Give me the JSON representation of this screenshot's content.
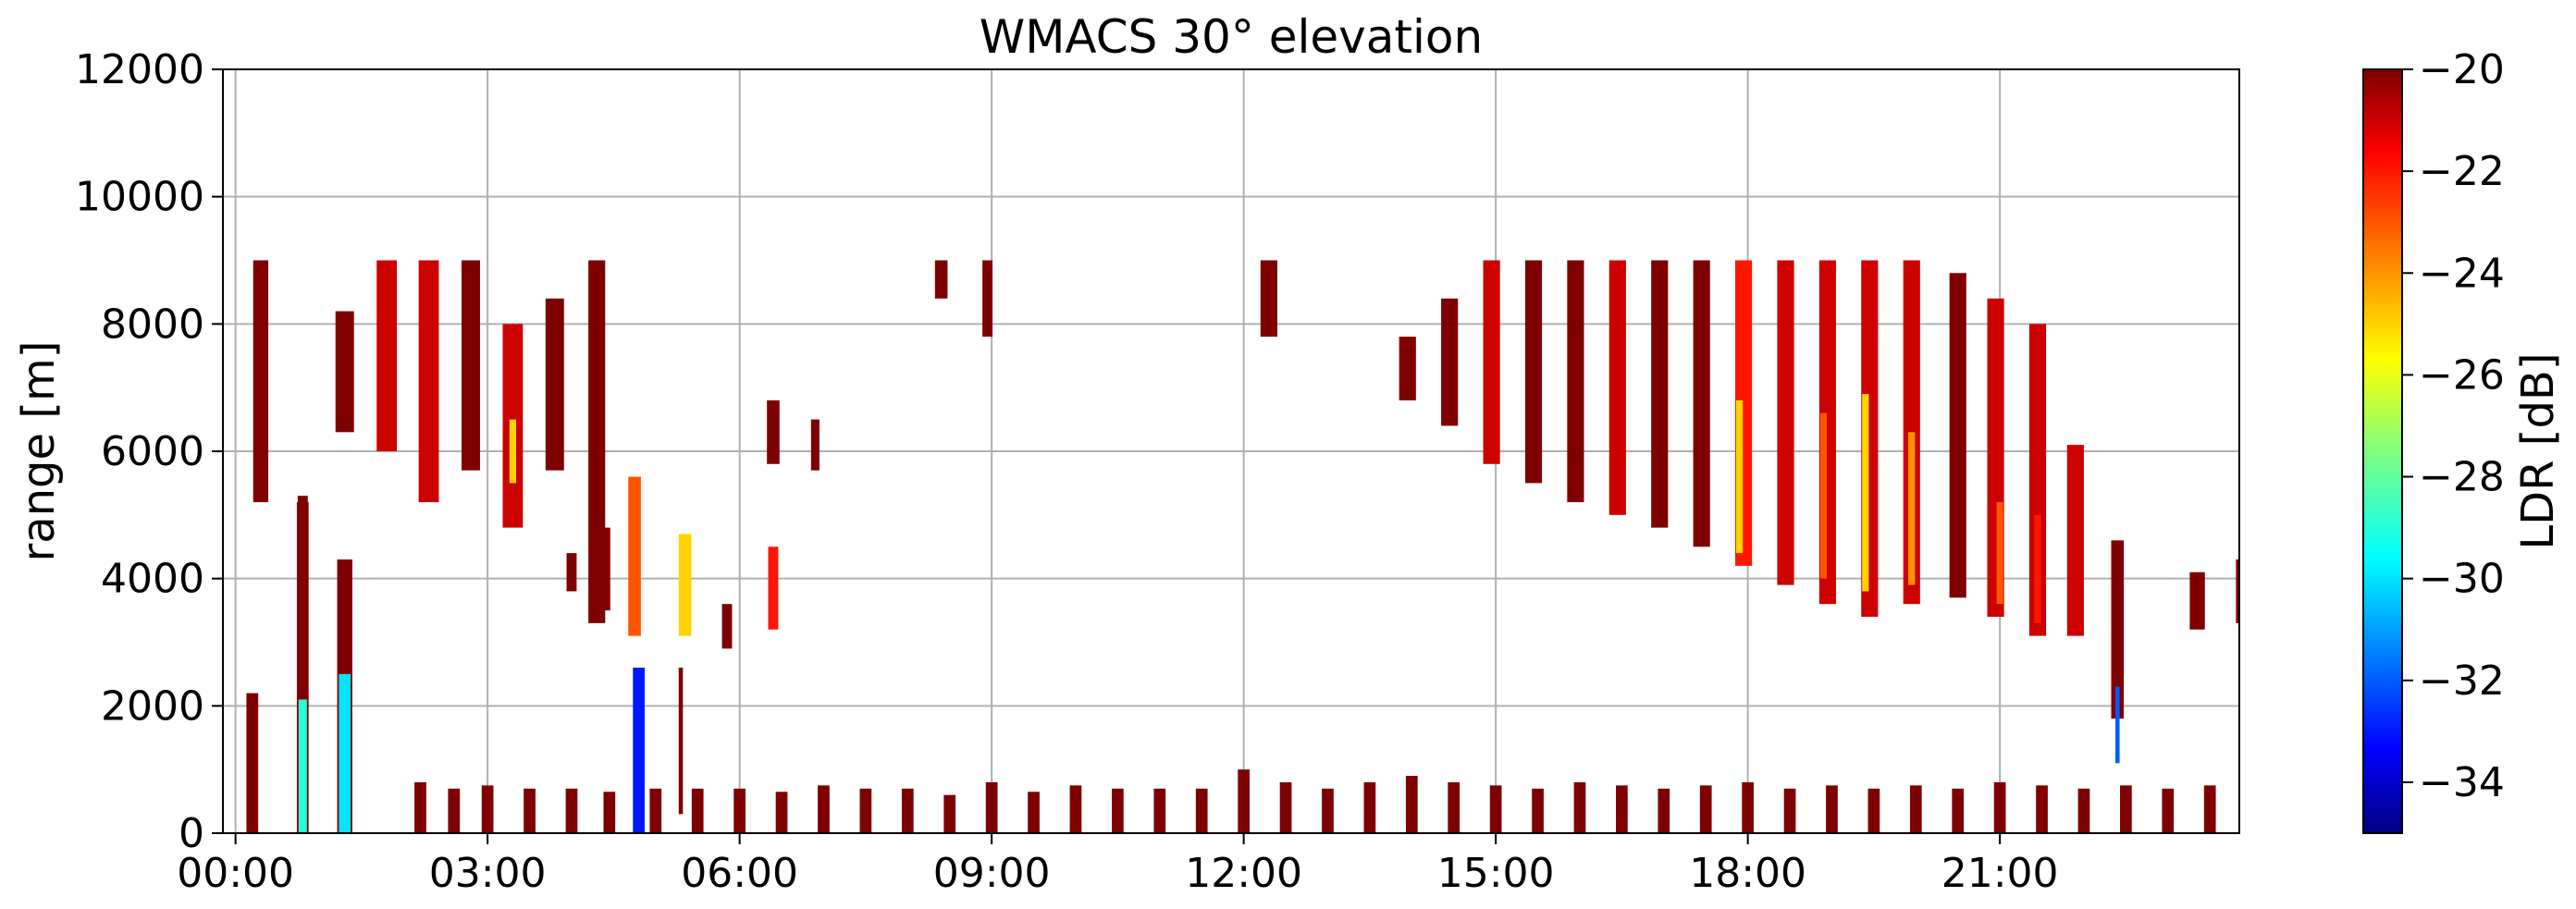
{
  "chart_data": {
    "type": "heatmap",
    "title": "WMACS 30° elevation",
    "xlabel": "",
    "ylabel": "range [m]",
    "x_unit": "hours",
    "xlim": [
      -0.15,
      23.85
    ],
    "ylim": [
      0,
      12000
    ],
    "x_ticks": [
      0,
      3,
      6,
      9,
      12,
      15,
      18,
      21
    ],
    "x_tick_labels": [
      "00:00",
      "03:00",
      "06:00",
      "09:00",
      "12:00",
      "15:00",
      "18:00",
      "21:00"
    ],
    "y_ticks": [
      0,
      2000,
      4000,
      6000,
      8000,
      10000,
      12000
    ],
    "y_tick_labels": [
      "0",
      "2000",
      "4000",
      "6000",
      "8000",
      "10000",
      "12000"
    ],
    "grid": true,
    "colorbar": {
      "label": "LDR [dB]",
      "range": [
        -35,
        -20
      ],
      "ticks": [
        -20,
        -22,
        -24,
        -26,
        -28,
        -30,
        -32,
        -34
      ],
      "tick_labels": [
        "−20",
        "−22",
        "−24",
        "−26",
        "−28",
        "−30",
        "−32",
        "−34"
      ],
      "colormap": "jet"
    },
    "upper_columns": [
      {
        "t": 0.3,
        "w": 0.18,
        "y0": 5200,
        "y1": 9000,
        "ldr": -20
      },
      {
        "t": 1.3,
        "w": 0.22,
        "y0": 6300,
        "y1": 8200,
        "ldr": -20
      },
      {
        "t": 1.8,
        "w": 0.24,
        "y0": 6000,
        "y1": 9000,
        "ldr": -21
      },
      {
        "t": 2.3,
        "w": 0.24,
        "y0": 5200,
        "y1": 9000,
        "ldr": -21
      },
      {
        "t": 2.8,
        "w": 0.22,
        "y0": 5700,
        "y1": 9000,
        "ldr": -20
      },
      {
        "t": 3.3,
        "w": 0.24,
        "y0": 4800,
        "y1": 8000,
        "ldr": -21
      },
      {
        "t": 3.8,
        "w": 0.22,
        "y0": 5700,
        "y1": 8400,
        "ldr": -20
      },
      {
        "t": 4.3,
        "w": 0.2,
        "y0": 3300,
        "y1": 9000,
        "ldr": -20
      },
      {
        "t": 8.4,
        "w": 0.15,
        "y0": 8400,
        "y1": 9000,
        "ldr": -20
      },
      {
        "t": 8.95,
        "w": 0.12,
        "y0": 7800,
        "y1": 9000,
        "ldr": -20
      },
      {
        "t": 12.3,
        "w": 0.2,
        "y0": 7800,
        "y1": 9000,
        "ldr": -20
      },
      {
        "t": 13.95,
        "w": 0.2,
        "y0": 6800,
        "y1": 7800,
        "ldr": -20
      },
      {
        "t": 14.45,
        "w": 0.2,
        "y0": 6400,
        "y1": 8400,
        "ldr": -20
      },
      {
        "t": 14.95,
        "w": 0.2,
        "y0": 5800,
        "y1": 9000,
        "ldr": -21
      },
      {
        "t": 15.45,
        "w": 0.2,
        "y0": 5500,
        "y1": 9000,
        "ldr": -20
      },
      {
        "t": 15.95,
        "w": 0.2,
        "y0": 5200,
        "y1": 9000,
        "ldr": -20
      },
      {
        "t": 16.45,
        "w": 0.2,
        "y0": 5000,
        "y1": 9000,
        "ldr": -21
      },
      {
        "t": 16.95,
        "w": 0.2,
        "y0": 4800,
        "y1": 9000,
        "ldr": -20
      },
      {
        "t": 17.45,
        "w": 0.2,
        "y0": 4500,
        "y1": 9000,
        "ldr": -20
      },
      {
        "t": 17.95,
        "w": 0.2,
        "y0": 4200,
        "y1": 9000,
        "ldr": -22
      },
      {
        "t": 18.45,
        "w": 0.2,
        "y0": 3900,
        "y1": 9000,
        "ldr": -21
      },
      {
        "t": 18.95,
        "w": 0.2,
        "y0": 3600,
        "y1": 9000,
        "ldr": -21
      },
      {
        "t": 19.45,
        "w": 0.2,
        "y0": 3400,
        "y1": 9000,
        "ldr": -21
      },
      {
        "t": 19.95,
        "w": 0.2,
        "y0": 3600,
        "y1": 9000,
        "ldr": -21
      },
      {
        "t": 20.5,
        "w": 0.2,
        "y0": 3700,
        "y1": 8800,
        "ldr": -20
      },
      {
        "t": 20.95,
        "w": 0.2,
        "y0": 3400,
        "y1": 8400,
        "ldr": -21
      },
      {
        "t": 21.45,
        "w": 0.2,
        "y0": 3100,
        "y1": 8000,
        "ldr": -21
      },
      {
        "t": 21.9,
        "w": 0.2,
        "y0": 3100,
        "y1": 6100,
        "ldr": -21
      },
      {
        "t": 22.4,
        "w": 0.15,
        "y0": 1800,
        "y1": 4600,
        "ldr": -20
      },
      {
        "t": 23.35,
        "w": 0.18,
        "y0": 3200,
        "y1": 4100,
        "ldr": -20
      },
      {
        "t": 23.85,
        "w": 0.08,
        "y0": 3300,
        "y1": 4300,
        "ldr": -20
      }
    ],
    "mid_patches": [
      {
        "t": 4.0,
        "w": 0.12,
        "y0": 3800,
        "y1": 4400,
        "ldr": -20
      },
      {
        "t": 4.4,
        "w": 0.12,
        "y0": 3500,
        "y1": 4800,
        "ldr": -20
      },
      {
        "t": 4.75,
        "w": 0.15,
        "y0": 3100,
        "y1": 5600,
        "ldr": -23
      },
      {
        "t": 5.35,
        "w": 0.15,
        "y0": 3100,
        "y1": 4700,
        "ldr": -25
      },
      {
        "t": 5.85,
        "w": 0.12,
        "y0": 2900,
        "y1": 3600,
        "ldr": -20
      },
      {
        "t": 6.4,
        "w": 0.12,
        "y0": 3200,
        "y1": 4500,
        "ldr": -22
      },
      {
        "t": 6.4,
        "w": 0.15,
        "y0": 5800,
        "y1": 6800,
        "ldr": -20
      },
      {
        "t": 6.9,
        "w": 0.1,
        "y0": 5700,
        "y1": 6500,
        "ldr": -20
      },
      {
        "t": 0.8,
        "w": 0.12,
        "y0": 4200,
        "y1": 5300,
        "ldr": -20
      }
    ],
    "low_columns": [
      {
        "t": 0.2,
        "w": 0.14,
        "y0": 0,
        "y1": 2200,
        "ldr": -20
      },
      {
        "t": 0.8,
        "w": 0.14,
        "y0": 0,
        "y1": 5200,
        "ldr": -20
      },
      {
        "t": 0.8,
        "w": 0.1,
        "y0": 0,
        "y1": 2100,
        "ldr": -29
      },
      {
        "t": 1.3,
        "w": 0.18,
        "y0": 0,
        "y1": 4300,
        "ldr": -20
      },
      {
        "t": 1.3,
        "w": 0.14,
        "y0": 0,
        "y1": 2500,
        "ldr": -30
      },
      {
        "t": 4.8,
        "w": 0.14,
        "y0": 0,
        "y1": 2600,
        "ldr": -33
      },
      {
        "t": 5.3,
        "w": 0.05,
        "y0": 300,
        "y1": 2600,
        "ldr": -20
      },
      {
        "t": 22.4,
        "w": 0.05,
        "y0": 1100,
        "y1": 2300,
        "ldr": -32
      }
    ],
    "speckle_bands": [
      {
        "t": 2.2,
        "y1": 800
      },
      {
        "t": 2.6,
        "y1": 700
      },
      {
        "t": 3.0,
        "y1": 750
      },
      {
        "t": 3.5,
        "y1": 700
      },
      {
        "t": 4.0,
        "y1": 700
      },
      {
        "t": 4.45,
        "y1": 650
      },
      {
        "t": 5.0,
        "y1": 700
      },
      {
        "t": 5.5,
        "y1": 700
      },
      {
        "t": 6.0,
        "y1": 700
      },
      {
        "t": 6.5,
        "y1": 650
      },
      {
        "t": 7.0,
        "y1": 750
      },
      {
        "t": 7.5,
        "y1": 700
      },
      {
        "t": 8.0,
        "y1": 700
      },
      {
        "t": 8.5,
        "y1": 600
      },
      {
        "t": 9.0,
        "y1": 800
      },
      {
        "t": 9.5,
        "y1": 650
      },
      {
        "t": 10.0,
        "y1": 750
      },
      {
        "t": 10.5,
        "y1": 700
      },
      {
        "t": 11.0,
        "y1": 700
      },
      {
        "t": 11.5,
        "y1": 700
      },
      {
        "t": 12.0,
        "y1": 1000
      },
      {
        "t": 12.5,
        "y1": 800
      },
      {
        "t": 13.0,
        "y1": 700
      },
      {
        "t": 13.5,
        "y1": 800
      },
      {
        "t": 14.0,
        "y1": 900
      },
      {
        "t": 14.5,
        "y1": 800
      },
      {
        "t": 15.0,
        "y1": 750
      },
      {
        "t": 15.5,
        "y1": 700
      },
      {
        "t": 16.0,
        "y1": 800
      },
      {
        "t": 16.5,
        "y1": 750
      },
      {
        "t": 17.0,
        "y1": 700
      },
      {
        "t": 17.5,
        "y1": 750
      },
      {
        "t": 18.0,
        "y1": 800
      },
      {
        "t": 18.5,
        "y1": 700
      },
      {
        "t": 19.0,
        "y1": 750
      },
      {
        "t": 19.5,
        "y1": 700
      },
      {
        "t": 20.0,
        "y1": 750
      },
      {
        "t": 20.5,
        "y1": 700
      },
      {
        "t": 21.0,
        "y1": 800
      },
      {
        "t": 21.5,
        "y1": 750
      },
      {
        "t": 22.0,
        "y1": 700
      },
      {
        "t": 22.5,
        "y1": 750
      },
      {
        "t": 23.0,
        "y1": 700
      },
      {
        "t": 23.5,
        "y1": 750
      }
    ],
    "interior_patches": [
      {
        "t": 17.9,
        "y0": 4400,
        "y1": 6800,
        "ldr": -25
      },
      {
        "t": 18.9,
        "y0": 4000,
        "y1": 6600,
        "ldr": -23
      },
      {
        "t": 19.4,
        "y0": 3800,
        "y1": 6900,
        "ldr": -25
      },
      {
        "t": 19.95,
        "y0": 3900,
        "y1": 6300,
        "ldr": -24
      },
      {
        "t": 21.0,
        "y0": 3600,
        "y1": 5200,
        "ldr": -23
      },
      {
        "t": 21.45,
        "y0": 3300,
        "y1": 5000,
        "ldr": -22
      },
      {
        "t": 3.3,
        "y0": 5500,
        "y1": 6500,
        "ldr": -25
      }
    ]
  }
}
